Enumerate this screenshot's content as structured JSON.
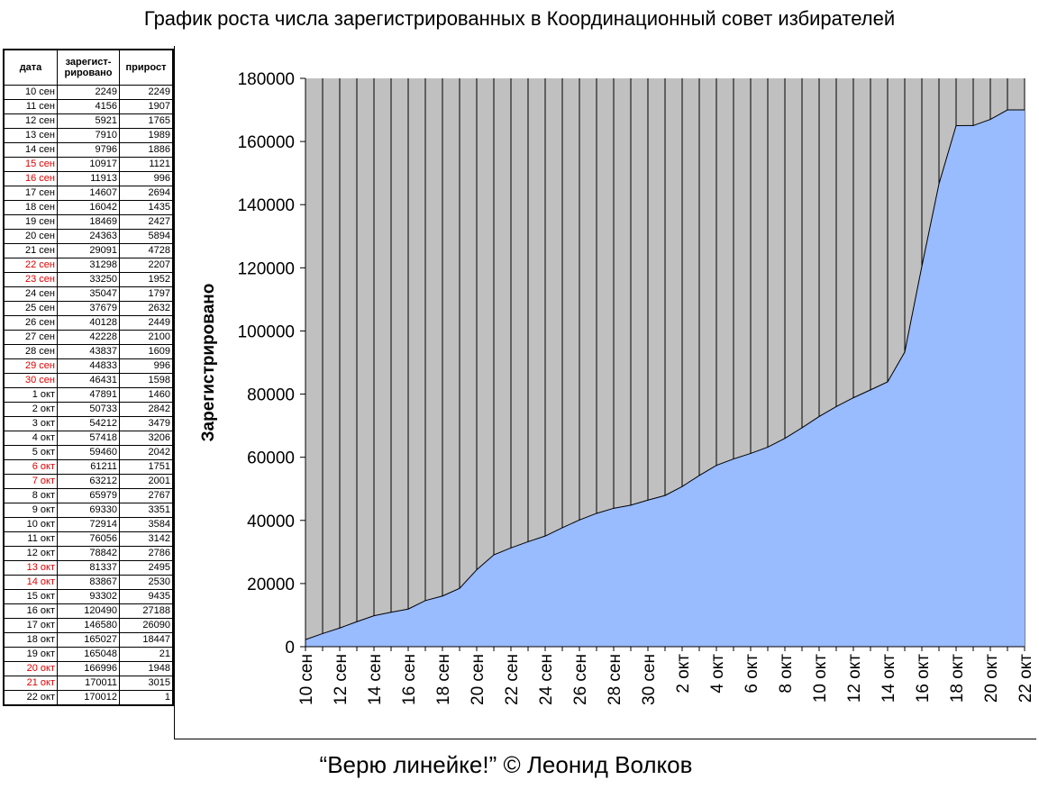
{
  "title": "График роста числа зарегистрированных в Координационный совет избирателей",
  "caption": "“Верю линейке!” © Леонид Волков",
  "table": {
    "headers": [
      "дата",
      "зарегист-\nрировано",
      "прирост"
    ],
    "rows": [
      {
        "date": "10 сен",
        "registered": "2249",
        "growth": "2249",
        "weekend": false
      },
      {
        "date": "11 сен",
        "registered": "4156",
        "growth": "1907",
        "weekend": false
      },
      {
        "date": "12 сен",
        "registered": "5921",
        "growth": "1765",
        "weekend": false
      },
      {
        "date": "13 сен",
        "registered": "7910",
        "growth": "1989",
        "weekend": false
      },
      {
        "date": "14 сен",
        "registered": "9796",
        "growth": "1886",
        "weekend": false
      },
      {
        "date": "15 сен",
        "registered": "10917",
        "growth": "1121",
        "weekend": true
      },
      {
        "date": "16 сен",
        "registered": "11913",
        "growth": "996",
        "weekend": true
      },
      {
        "date": "17 сен",
        "registered": "14607",
        "growth": "2694",
        "weekend": false
      },
      {
        "date": "18 сен",
        "registered": "16042",
        "growth": "1435",
        "weekend": false
      },
      {
        "date": "19 сен",
        "registered": "18469",
        "growth": "2427",
        "weekend": false
      },
      {
        "date": "20 сен",
        "registered": "24363",
        "growth": "5894",
        "weekend": false
      },
      {
        "date": "21 сен",
        "registered": "29091",
        "growth": "4728",
        "weekend": false
      },
      {
        "date": "22 сен",
        "registered": "31298",
        "growth": "2207",
        "weekend": true
      },
      {
        "date": "23 сен",
        "registered": "33250",
        "growth": "1952",
        "weekend": true
      },
      {
        "date": "24 сен",
        "registered": "35047",
        "growth": "1797",
        "weekend": false
      },
      {
        "date": "25 сен",
        "registered": "37679",
        "growth": "2632",
        "weekend": false
      },
      {
        "date": "26 сен",
        "registered": "40128",
        "growth": "2449",
        "weekend": false
      },
      {
        "date": "27 сен",
        "registered": "42228",
        "growth": "2100",
        "weekend": false
      },
      {
        "date": "28 сен",
        "registered": "43837",
        "growth": "1609",
        "weekend": false
      },
      {
        "date": "29 сен",
        "registered": "44833",
        "growth": "996",
        "weekend": true
      },
      {
        "date": "30 сен",
        "registered": "46431",
        "growth": "1598",
        "weekend": true
      },
      {
        "date": "1 окт",
        "registered": "47891",
        "growth": "1460",
        "weekend": false
      },
      {
        "date": "2 окт",
        "registered": "50733",
        "growth": "2842",
        "weekend": false
      },
      {
        "date": "3 окт",
        "registered": "54212",
        "growth": "3479",
        "weekend": false
      },
      {
        "date": "4 окт",
        "registered": "57418",
        "growth": "3206",
        "weekend": false
      },
      {
        "date": "5 окт",
        "registered": "59460",
        "growth": "2042",
        "weekend": false
      },
      {
        "date": "6 окт",
        "registered": "61211",
        "growth": "1751",
        "weekend": true
      },
      {
        "date": "7 окт",
        "registered": "63212",
        "growth": "2001",
        "weekend": true
      },
      {
        "date": "8 окт",
        "registered": "65979",
        "growth": "2767",
        "weekend": false
      },
      {
        "date": "9 окт",
        "registered": "69330",
        "growth": "3351",
        "weekend": false
      },
      {
        "date": "10 окт",
        "registered": "72914",
        "growth": "3584",
        "weekend": false
      },
      {
        "date": "11 окт",
        "registered": "76056",
        "growth": "3142",
        "weekend": false
      },
      {
        "date": "12 окт",
        "registered": "78842",
        "growth": "2786",
        "weekend": false
      },
      {
        "date": "13 окт",
        "registered": "81337",
        "growth": "2495",
        "weekend": true
      },
      {
        "date": "14 окт",
        "registered": "83867",
        "growth": "2530",
        "weekend": true
      },
      {
        "date": "15 окт",
        "registered": "93302",
        "growth": "9435",
        "weekend": false
      },
      {
        "date": "16 окт",
        "registered": "120490",
        "growth": "27188",
        "weekend": false
      },
      {
        "date": "17 окт",
        "registered": "146580",
        "growth": "26090",
        "weekend": false
      },
      {
        "date": "18 окт",
        "registered": "165027",
        "growth": "18447",
        "weekend": false
      },
      {
        "date": "19 окт",
        "registered": "165048",
        "growth": "21",
        "weekend": false
      },
      {
        "date": "20 окт",
        "registered": "166996",
        "growth": "1948",
        "weekend": true
      },
      {
        "date": "21 окт",
        "registered": "170011",
        "growth": "3015",
        "weekend": true
      },
      {
        "date": "22 окт",
        "registered": "170012",
        "growth": "1",
        "weekend": false
      }
    ]
  },
  "colors": {
    "plot_background": "#c0c0c0",
    "area_fill": "#99bbff",
    "area_stroke": "#000000",
    "gridline": "#000000",
    "weekend_text": "#e00000"
  },
  "chart_data": {
    "type": "area",
    "title": "",
    "ylabel": "Зарегистрировано",
    "xlabel": "",
    "ylim": [
      0,
      180000
    ],
    "yticks": [
      0,
      20000,
      40000,
      60000,
      80000,
      100000,
      120000,
      140000,
      160000,
      180000
    ],
    "grid": "vertical",
    "x": [
      "10 сен",
      "11 сен",
      "12 сен",
      "13 сен",
      "14 сен",
      "15 сен",
      "16 сен",
      "17 сен",
      "18 сен",
      "19 сен",
      "20 сен",
      "21 сен",
      "22 сен",
      "23 сен",
      "24 сен",
      "25 сен",
      "26 сен",
      "27 сен",
      "28 сен",
      "29 сен",
      "30 сен",
      "1 окт",
      "2 окт",
      "3 окт",
      "4 окт",
      "5 окт",
      "6 окт",
      "7 окт",
      "8 окт",
      "9 окт",
      "10 окт",
      "11 окт",
      "12 окт",
      "13 окт",
      "14 окт",
      "15 окт",
      "16 окт",
      "17 окт",
      "18 окт",
      "19 окт",
      "20 окт",
      "21 окт",
      "22 окт"
    ],
    "xtick_labels_every": 2,
    "series": [
      {
        "values": [
          2249,
          4156,
          5921,
          7910,
          9796,
          10917,
          11913,
          14607,
          16042,
          18469,
          24363,
          29091,
          31298,
          33250,
          35047,
          37679,
          40128,
          42228,
          43837,
          44833,
          46431,
          47891,
          50733,
          54212,
          57418,
          59460,
          61211,
          63212,
          65979,
          69330,
          72914,
          76056,
          78842,
          81337,
          83867,
          93302,
          120490,
          146580,
          165027,
          165048,
          166996,
          170011,
          170012
        ]
      }
    ]
  }
}
